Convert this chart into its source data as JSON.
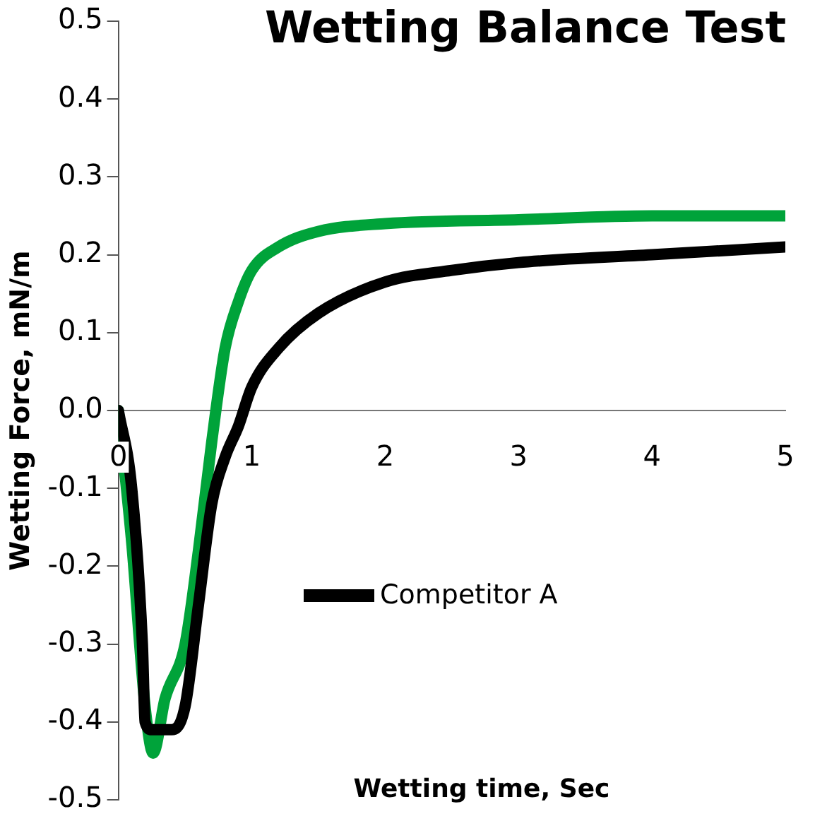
{
  "chart_data": {
    "type": "line",
    "title": "Wetting Balance Test",
    "xlabel": "Wetting time, Sec",
    "ylabel": "Wetting Force, mN/m",
    "xlim": [
      0,
      5
    ],
    "xticks": [
      0,
      1,
      2,
      3,
      4,
      5
    ],
    "ylim": [
      -0.5,
      0.5
    ],
    "yticks": [
      {
        "value": -0.5,
        "label": "-0.5"
      },
      {
        "value": -0.4,
        "label": "-0.4"
      },
      {
        "value": -0.3,
        "label": "-0.3"
      },
      {
        "value": -0.2,
        "label": "-0.2"
      },
      {
        "value": -0.1,
        "label": "-0.1"
      },
      {
        "value": 0,
        "label": "0.0"
      },
      {
        "value": 0.1,
        "label": "0.1"
      },
      {
        "value": 0.2,
        "label": "0.2"
      },
      {
        "value": 0.3,
        "label": "0.3"
      },
      {
        "value": 0.4,
        "label": "0.4"
      },
      {
        "value": 0.5,
        "label": "0.5"
      }
    ],
    "grid": false,
    "legend": "bottom right",
    "marker": "none",
    "line_style": "solid",
    "series": [
      {
        "color": "#00a33a",
        "x": [
          0,
          0.1,
          0.2,
          0.26,
          0.35,
          0.5,
          0.6,
          0.7,
          0.8,
          0.9,
          1.0,
          1.2,
          1.5,
          2,
          3,
          4,
          5
        ],
        "values": [
          0,
          -0.17,
          -0.38,
          -0.44,
          -0.37,
          -0.3,
          -0.18,
          -0.04,
          0.08,
          0.14,
          0.18,
          0.21,
          0.23,
          0.24,
          0.245,
          0.25,
          0.25
        ]
      },
      {
        "name": "Competitor A",
        "color": "#000000",
        "x": [
          0,
          0.1,
          0.18,
          0.2,
          0.25,
          0.4,
          0.5,
          0.6,
          0.7,
          0.8,
          0.9,
          1.0,
          1.2,
          1.5,
          2,
          2.5,
          3,
          4,
          5
        ],
        "values": [
          0,
          -0.1,
          -0.3,
          -0.4,
          -0.41,
          -0.41,
          -0.38,
          -0.25,
          -0.12,
          -0.06,
          -0.02,
          0.03,
          0.08,
          0.125,
          0.165,
          0.18,
          0.19,
          0.2,
          0.21
        ]
      }
    ]
  }
}
